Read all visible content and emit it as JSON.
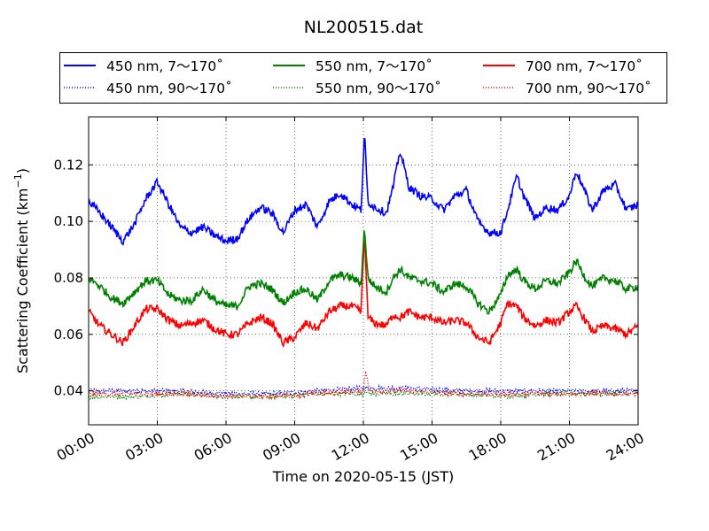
{
  "chart_data": {
    "type": "line",
    "title": "NL200515.dat",
    "xlabel": "Time on 2020-05-15 (JST)",
    "ylabel": "Scattering Coefficient (km",
    "ylabel_sup": "−1",
    "ylabel_close": ")",
    "xlim": [
      0,
      24
    ],
    "ylim": [
      0.028,
      0.137
    ],
    "x_ticks": [
      0,
      3,
      6,
      9,
      12,
      15,
      18,
      21,
      24
    ],
    "x_tick_labels": [
      "00:00",
      "03:00",
      "06:00",
      "09:00",
      "12:00",
      "15:00",
      "18:00",
      "21:00",
      "24:00"
    ],
    "y_ticks": [
      0.04,
      0.06,
      0.08,
      0.1,
      0.12
    ],
    "y_tick_labels": [
      "0.04",
      "0.06",
      "0.08",
      "0.10",
      "0.12"
    ],
    "grid": true,
    "legend_position": "top",
    "x_unit": "hours",
    "series": [
      {
        "name": "450 nm, 7～170˚",
        "color": "#0000ff",
        "style": "solid",
        "x": [
          0,
          0.5,
          1,
          1.5,
          2,
          2.5,
          3,
          3.5,
          4,
          4.5,
          5,
          5.5,
          6,
          6.5,
          7,
          7.5,
          8,
          8.5,
          9,
          9.5,
          10,
          10.5,
          11,
          11.5,
          11.9,
          12.05,
          12.2,
          12.5,
          13,
          13.3,
          13.6,
          14,
          14.5,
          15,
          15.5,
          16,
          16.5,
          17,
          17.5,
          18,
          18.3,
          18.7,
          19,
          19.5,
          20,
          20.5,
          21,
          21.3,
          21.7,
          22,
          22.5,
          23,
          23.5,
          24
        ],
        "y": [
          0.107,
          0.103,
          0.098,
          0.093,
          0.099,
          0.108,
          0.114,
          0.106,
          0.098,
          0.096,
          0.098,
          0.095,
          0.093,
          0.094,
          0.101,
          0.105,
          0.103,
          0.096,
          0.104,
          0.106,
          0.098,
          0.107,
          0.11,
          0.106,
          0.104,
          0.131,
          0.107,
          0.105,
          0.103,
          0.112,
          0.125,
          0.112,
          0.109,
          0.108,
          0.104,
          0.109,
          0.111,
          0.1,
          0.096,
          0.096,
          0.104,
          0.116,
          0.109,
          0.101,
          0.105,
          0.104,
          0.109,
          0.118,
          0.11,
          0.104,
          0.111,
          0.113,
          0.104,
          0.106
        ]
      },
      {
        "name": "550 nm, 7～170˚",
        "color": "#008000",
        "style": "solid",
        "x": [
          0,
          0.5,
          1,
          1.5,
          2,
          2.5,
          3,
          3.5,
          4,
          4.5,
          5,
          5.5,
          6,
          6.5,
          7,
          7.5,
          8,
          8.5,
          9,
          9.5,
          10,
          10.5,
          11,
          11.5,
          11.9,
          12.05,
          12.2,
          12.5,
          13,
          13.3,
          13.6,
          14,
          14.5,
          15,
          15.5,
          16,
          16.5,
          17,
          17.5,
          18,
          18.3,
          18.7,
          19,
          19.5,
          20,
          20.5,
          21,
          21.3,
          21.7,
          22,
          22.5,
          23,
          23.5,
          24
        ],
        "y": [
          0.08,
          0.077,
          0.073,
          0.071,
          0.075,
          0.079,
          0.079,
          0.074,
          0.072,
          0.072,
          0.076,
          0.072,
          0.07,
          0.07,
          0.077,
          0.078,
          0.076,
          0.071,
          0.075,
          0.076,
          0.072,
          0.079,
          0.081,
          0.08,
          0.078,
          0.098,
          0.08,
          0.077,
          0.075,
          0.08,
          0.083,
          0.08,
          0.079,
          0.078,
          0.075,
          0.078,
          0.077,
          0.071,
          0.068,
          0.074,
          0.081,
          0.083,
          0.079,
          0.076,
          0.079,
          0.078,
          0.082,
          0.086,
          0.08,
          0.077,
          0.08,
          0.079,
          0.076,
          0.077
        ]
      },
      {
        "name": "700 nm, 7～170˚",
        "color": "#ff0000",
        "style": "solid",
        "x": [
          0,
          0.5,
          1,
          1.5,
          2,
          2.5,
          3,
          3.5,
          4,
          4.5,
          5,
          5.5,
          6,
          6.5,
          7,
          7.5,
          8,
          8.5,
          9,
          9.5,
          10,
          10.5,
          11,
          11.5,
          11.9,
          12.05,
          12.2,
          12.5,
          13,
          13.3,
          13.6,
          14,
          14.5,
          15,
          15.5,
          16,
          16.5,
          17,
          17.5,
          18,
          18.3,
          18.7,
          19,
          19.5,
          20,
          20.5,
          21,
          21.3,
          21.7,
          22,
          22.5,
          23,
          23.5,
          24
        ],
        "y": [
          0.068,
          0.063,
          0.06,
          0.057,
          0.063,
          0.069,
          0.069,
          0.065,
          0.063,
          0.064,
          0.065,
          0.062,
          0.06,
          0.06,
          0.064,
          0.066,
          0.064,
          0.057,
          0.059,
          0.064,
          0.062,
          0.068,
          0.07,
          0.07,
          0.068,
          0.096,
          0.066,
          0.064,
          0.063,
          0.067,
          0.066,
          0.068,
          0.066,
          0.066,
          0.064,
          0.065,
          0.064,
          0.059,
          0.057,
          0.064,
          0.071,
          0.07,
          0.066,
          0.063,
          0.065,
          0.064,
          0.068,
          0.07,
          0.065,
          0.061,
          0.063,
          0.062,
          0.06,
          0.063
        ]
      },
      {
        "name": "450 nm, 90～170˚",
        "color": "#0000ff",
        "style": "dotted",
        "x": [
          0,
          2,
          4,
          6,
          8,
          10,
          12,
          12.1,
          12.3,
          14,
          16,
          18,
          20,
          22,
          24
        ],
        "y": [
          0.04,
          0.04,
          0.04,
          0.039,
          0.039,
          0.04,
          0.041,
          0.041,
          0.041,
          0.041,
          0.04,
          0.04,
          0.04,
          0.04,
          0.04
        ]
      },
      {
        "name": "550 nm, 90～170˚",
        "color": "#008000",
        "style": "dotted",
        "x": [
          0,
          2,
          4,
          6,
          8,
          10,
          12,
          12.1,
          12.3,
          14,
          16,
          18,
          20,
          22,
          24
        ],
        "y": [
          0.038,
          0.038,
          0.039,
          0.038,
          0.038,
          0.039,
          0.039,
          0.04,
          0.039,
          0.039,
          0.039,
          0.038,
          0.039,
          0.039,
          0.039
        ]
      },
      {
        "name": "700 nm, 90～170˚",
        "color": "#ff0000",
        "style": "dotted",
        "x": [
          0,
          2,
          4,
          6,
          8,
          10,
          12,
          12.1,
          12.3,
          14,
          16,
          18,
          20,
          22,
          24
        ],
        "y": [
          0.039,
          0.039,
          0.039,
          0.038,
          0.038,
          0.039,
          0.04,
          0.047,
          0.04,
          0.04,
          0.039,
          0.039,
          0.039,
          0.039,
          0.039
        ]
      }
    ]
  }
}
